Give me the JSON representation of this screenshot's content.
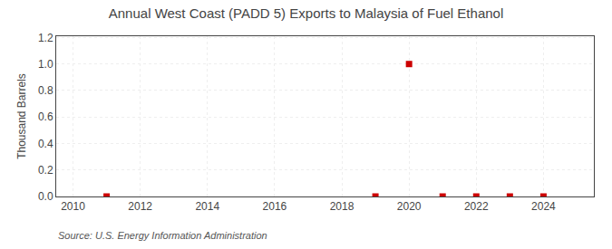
{
  "chart_data": {
    "type": "scatter",
    "title": "Annual West Coast (PADD 5) Exports to Malaysia of Fuel Ethanol",
    "ylabel": "Thousand Barrels",
    "annotations": [
      "Source: U.S. Energy Information Administration"
    ],
    "x": [
      2011,
      2019,
      2020,
      2021,
      2022,
      2023,
      2024
    ],
    "values": [
      0.0,
      0.0,
      1.0,
      0.0,
      0.0,
      0.0,
      0.0
    ],
    "color": "#cc0000",
    "marker": "square",
    "xlim": [
      2009.5,
      2025.5
    ],
    "ylim": [
      0.0,
      1.21
    ],
    "xticks": [
      2010,
      2012,
      2014,
      2016,
      2018,
      2020,
      2022,
      2024
    ],
    "yticks": [
      {
        "value": 0.0,
        "label": "0.0"
      },
      0.2,
      0.4,
      0.6,
      0.8,
      {
        "value": 1.0,
        "label": "1.0"
      },
      1.2
    ],
    "grid": true
  }
}
